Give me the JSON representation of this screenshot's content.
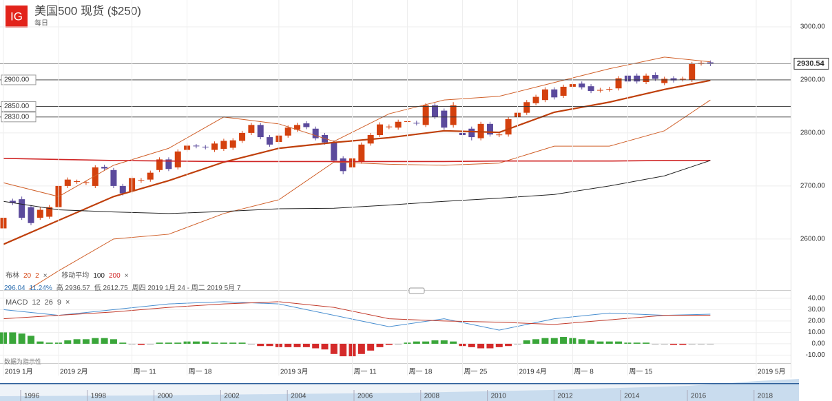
{
  "header": {
    "logo": "IG",
    "title": "美国500 现货 ($250)",
    "interval": "每日"
  },
  "legend": {
    "bollinger": [
      "布林",
      "20",
      "2"
    ],
    "ma": [
      "移动平均",
      "100",
      "200"
    ],
    "close_icon": "×",
    "stats": [
      "296.04",
      "11.24%",
      "高 2936.57",
      "低 2612.75",
      "周四 2019 1月 24 - 周二 2019 5月 7"
    ],
    "macd": [
      "MACD",
      "12",
      "26",
      "9"
    ],
    "note": "数据为指示性"
  },
  "navigator": {
    "years": [
      "1996",
      "1998",
      "2000",
      "2002",
      "2004",
      "2006",
      "2008",
      "2010",
      "2012",
      "2014",
      "2016",
      "2018"
    ]
  },
  "chart_data": [
    {
      "type": "candlestick",
      "xlim": [
        -0.375,
        85.75
      ],
      "ylim": [
        2505,
        3050.6
      ],
      "yticks": [
        {
          "value": 2600,
          "label": "2600.00"
        },
        {
          "value": 2700,
          "label": "2700.00"
        },
        {
          "value": 2800,
          "label": "2800.00"
        },
        {
          "value": 2900,
          "label": "2900.00"
        },
        {
          "value": 3000,
          "label": "3000.00"
        }
      ],
      "up_color": "#d4410e",
      "down_color": "#5b4a9c",
      "open": [
        2620,
        2672,
        2675,
        2660,
        2640,
        2642,
        2660,
        2700,
        2708,
        2706,
        2700,
        2736,
        2730,
        2700,
        2690,
        2710,
        2712,
        2730,
        2750,
        2735,
        2768,
        2776,
        2774,
        2768,
        2770,
        2772,
        2785,
        2800,
        2815,
        2792,
        2783,
        2795,
        2806,
        2818,
        2808,
        2796,
        2782,
        2752,
        2735,
        2746,
        2780,
        2796,
        2811,
        2810,
        2821,
        2819,
        2815,
        2852,
        2842,
        2815,
        2800,
        2808,
        2790,
        2817,
        2796,
        2797,
        2830,
        2838,
        2856,
        2862,
        2882,
        2870,
        2887,
        2893,
        2888,
        2880,
        2882,
        2884,
        2908,
        2908,
        2896,
        2909,
        2894,
        2903,
        2901,
        2900,
        2931,
        2933
      ],
      "high": [
        2645,
        2676,
        2680,
        2664,
        2660,
        2664,
        2704,
        2716,
        2712,
        2710,
        2739,
        2740,
        2734,
        2704,
        2719,
        2715,
        2729,
        2754,
        2754,
        2769,
        2780,
        2779,
        2777,
        2784,
        2789,
        2790,
        2804,
        2819,
        2819,
        2796,
        2799,
        2814,
        2819,
        2822,
        2812,
        2800,
        2786,
        2756,
        2756,
        2782,
        2800,
        2820,
        2816,
        2825,
        2826,
        2823,
        2856,
        2856,
        2846,
        2858,
        2804,
        2812,
        2821,
        2821,
        2801,
        2830,
        2842,
        2862,
        2872,
        2886,
        2886,
        2891,
        2896,
        2897,
        2892,
        2885,
        2887,
        2907,
        2912,
        2912,
        2912,
        2914,
        2906,
        2907,
        2906,
        2934,
        2936,
        2936.57
      ],
      "low": [
        2612.75,
        2664,
        2636,
        2626,
        2636,
        2638,
        2656,
        2696,
        2704,
        2702,
        2696,
        2729,
        2696,
        2682,
        2686,
        2706,
        2708,
        2726,
        2728,
        2731,
        2764,
        2771,
        2769,
        2764,
        2766,
        2768,
        2781,
        2796,
        2788,
        2774,
        2779,
        2791,
        2802,
        2807,
        2786,
        2778,
        2744,
        2722,
        2724,
        2742,
        2776,
        2792,
        2807,
        2806,
        2817,
        2814,
        2811,
        2826,
        2806,
        2810,
        2790,
        2786,
        2786,
        2793,
        2792,
        2793,
        2826,
        2834,
        2852,
        2858,
        2863,
        2866,
        2883,
        2882,
        2875,
        2876,
        2878,
        2880,
        2893,
        2893,
        2892,
        2898,
        2890,
        2895,
        2897,
        2896,
        2927,
        2926
      ],
      "close": [
        2640,
        2668,
        2640,
        2630,
        2655,
        2660,
        2700,
        2712,
        2709,
        2707,
        2735,
        2733,
        2700,
        2686,
        2715,
        2711,
        2725,
        2750,
        2732,
        2765,
        2776,
        2775,
        2773,
        2780,
        2785,
        2786,
        2800,
        2815,
        2792,
        2778,
        2795,
        2810,
        2815,
        2811,
        2790,
        2782,
        2748,
        2728,
        2752,
        2778,
        2796,
        2816,
        2812,
        2821,
        2822,
        2818,
        2852,
        2830,
        2810,
        2852,
        2796,
        2792,
        2817,
        2797,
        2797,
        2826,
        2838,
        2858,
        2868,
        2882,
        2867,
        2887,
        2892,
        2886,
        2879,
        2881,
        2883,
        2903,
        2897,
        2897,
        2908,
        2902,
        2902,
        2899,
        2902,
        2930,
        2932,
        2930.54
      ],
      "series": [
        {
          "color": "#d0602a",
          "x": [
            0,
            6,
            12,
            18,
            24,
            30,
            36,
            42,
            48,
            54,
            60,
            66,
            72,
            77
          ],
          "values": [
            2706,
            2680,
            2739,
            2771,
            2830,
            2817,
            2784,
            2836,
            2862,
            2869,
            2895,
            2921,
            2943,
            2934
          ]
        },
        {
          "color": "#bf3f0b",
          "x": [
            0,
            6,
            12,
            18,
            24,
            30,
            36,
            42,
            48,
            54,
            60,
            66,
            72,
            77
          ],
          "values": [
            2590,
            2635,
            2680,
            2710,
            2745,
            2771,
            2782,
            2791,
            2804,
            2801,
            2839,
            2858,
            2882,
            2899
          ]
        },
        {
          "color": "#d0602a",
          "x": [
            0,
            6,
            12,
            18,
            24,
            30,
            36,
            42,
            48,
            54,
            60,
            66,
            72,
            77
          ],
          "values": [
            2475,
            2540,
            2600,
            2609,
            2648,
            2674,
            2745,
            2741,
            2739,
            2743,
            2775,
            2775,
            2804,
            2862
          ]
        },
        {
          "color": "#d02626",
          "x": [
            0,
            6,
            12,
            18,
            24,
            30,
            36,
            42,
            48,
            54,
            60,
            66,
            72,
            77
          ],
          "values": [
            2752,
            2750,
            2748,
            2747,
            2746,
            2746,
            2746,
            2746,
            2746,
            2747,
            2747,
            2747,
            2748,
            2748
          ]
        },
        {
          "color": "#222222",
          "x": [
            0,
            6,
            12,
            18,
            24,
            30,
            36,
            42,
            48,
            54,
            60,
            66,
            72,
            77
          ],
          "values": [
            2671,
            2655,
            2651,
            2648,
            2652,
            2657,
            2658,
            2664,
            2671,
            2677,
            2684,
            2700,
            2719,
            2748
          ]
        }
      ],
      "levels": [
        {
          "value": 2900,
          "label": "2900.00"
        },
        {
          "value": 2850,
          "label": "2850.00"
        },
        {
          "value": 2830,
          "label": "2830.00"
        }
      ],
      "last_price": {
        "value": 2930.54,
        "label": "2930.54"
      }
    },
    {
      "type": "macd",
      "xlim": [
        -0.375,
        85.75
      ],
      "ylim": [
        -15.8,
        44.8
      ],
      "yticks": [
        {
          "value": -10,
          "label": "-10.00"
        },
        {
          "value": 0,
          "label": "0.00"
        },
        {
          "value": 10,
          "label": "10.00"
        },
        {
          "value": 20,
          "label": "20.00"
        },
        {
          "value": 30,
          "label": "30.00"
        },
        {
          "value": 40,
          "label": "40.00"
        }
      ],
      "xticks": [
        {
          "value": 0,
          "label": "2019 1月"
        },
        {
          "value": 6,
          "label": "2019 2月"
        },
        {
          "value": 14,
          "label": "周一 11"
        },
        {
          "value": 20,
          "label": "周一 18"
        },
        {
          "value": 30,
          "label": "2019 3月"
        },
        {
          "value": 38,
          "label": "周一 11"
        },
        {
          "value": 44,
          "label": "周一 18"
        },
        {
          "value": 50,
          "label": "周一 25"
        },
        {
          "value": 56,
          "label": "2019 4月"
        },
        {
          "value": 62,
          "label": "周一 8"
        },
        {
          "value": 68,
          "label": "周一 15"
        },
        {
          "value": 82,
          "label": "2019 5月"
        }
      ],
      "pos_color": "#3aa63a",
      "neg_color": "#d42a2a",
      "histogram": [
        10,
        10,
        9,
        7,
        2,
        1,
        1,
        3,
        4,
        4,
        5,
        5,
        4,
        1,
        0,
        -1,
        0,
        1,
        1,
        1,
        2,
        2,
        2,
        1,
        1,
        1,
        1,
        0,
        -2,
        -2,
        -3,
        -3,
        -3,
        -3,
        -4,
        -5,
        -9,
        -11,
        -11,
        -9,
        -6,
        -3,
        -1,
        0,
        1,
        2,
        2,
        3,
        3,
        2,
        -2,
        -3,
        -4,
        -4,
        -3,
        -2,
        0,
        3,
        4,
        5,
        5,
        6,
        5,
        4,
        3,
        2,
        2,
        2,
        1,
        1,
        1,
        0,
        0,
        -1,
        -1,
        0,
        0,
        0
      ],
      "series": [
        {
          "color": "#4a8fd0",
          "x": [
            0,
            6,
            12,
            18,
            24,
            30,
            36,
            42,
            48,
            54,
            60,
            66,
            72,
            77
          ],
          "values": [
            30,
            25,
            30,
            35,
            37,
            35,
            25,
            15,
            22,
            12,
            22,
            27,
            25,
            26
          ]
        },
        {
          "color": "#c23a2a",
          "x": [
            0,
            6,
            12,
            18,
            24,
            30,
            36,
            42,
            48,
            54,
            60,
            66,
            72,
            77
          ],
          "values": [
            22,
            25,
            28,
            32,
            35,
            37,
            32,
            22,
            20,
            19,
            17,
            21,
            25,
            25
          ]
        }
      ]
    }
  ]
}
